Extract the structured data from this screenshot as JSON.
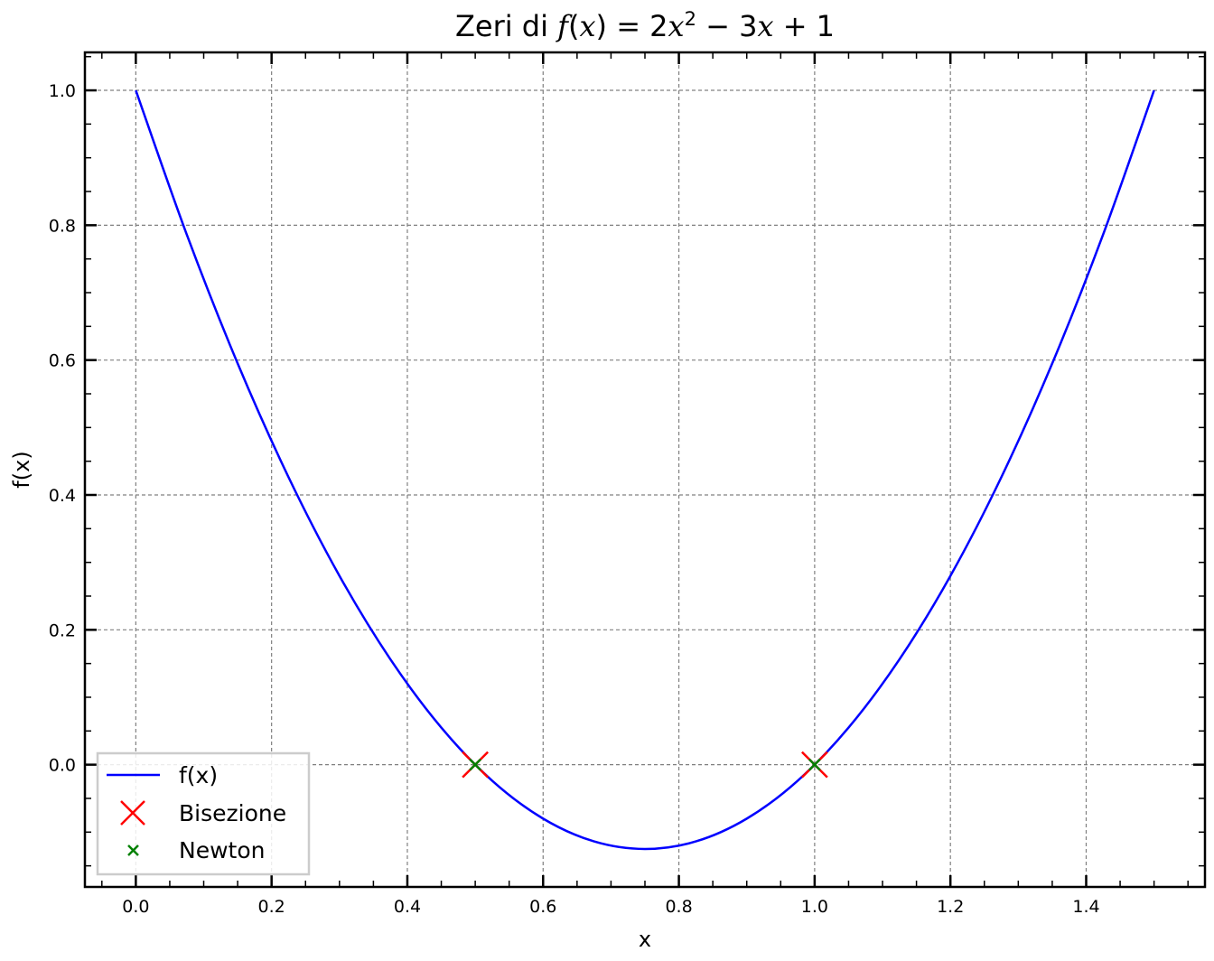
{
  "chart_data": {
    "type": "line",
    "title_parts": {
      "prefix": "Zeri di ",
      "fx": "f",
      "open": "(",
      "xvar": "x",
      "close": ")",
      "eq": " = 2",
      "x2": "x",
      "exp": "2",
      "mid": " − 3",
      "x3": "x",
      "tail": " + 1"
    },
    "xlabel": "x",
    "ylabel": "f(x)",
    "xlim": [
      -0.075,
      1.575
    ],
    "ylim": [
      -0.1813,
      1.0563
    ],
    "x_ticks": [
      0.0,
      0.2,
      0.4,
      0.6,
      0.8,
      1.0,
      1.2,
      1.4
    ],
    "x_tick_labels": [
      "0.0",
      "0.2",
      "0.4",
      "0.6",
      "0.8",
      "1.0",
      "1.2",
      "1.4"
    ],
    "y_ticks": [
      0.0,
      0.2,
      0.4,
      0.6,
      0.8,
      1.0
    ],
    "y_tick_labels": [
      "0.0",
      "0.2",
      "0.4",
      "0.6",
      "0.8",
      "1.0"
    ],
    "grid": true,
    "legend_position": "lower-left",
    "series": [
      {
        "name": "f(x)",
        "kind": "line",
        "color": "#0000ff",
        "x": [
          0.0,
          0.075,
          0.15,
          0.225,
          0.3,
          0.375,
          0.45,
          0.525,
          0.6,
          0.675,
          0.75,
          0.825,
          0.9,
          0.975,
          1.05,
          1.125,
          1.2,
          1.275,
          1.35,
          1.425,
          1.5
        ],
        "y": [
          1.0,
          0.7863,
          0.595,
          0.4263,
          0.28,
          0.1563,
          0.055,
          -0.0238,
          -0.08,
          -0.1138,
          -0.125,
          -0.1138,
          -0.08,
          -0.0238,
          0.055,
          0.1563,
          0.28,
          0.4263,
          0.595,
          0.7863,
          1.0
        ]
      },
      {
        "name": "Bisezione",
        "kind": "scatter",
        "marker": "x-large",
        "color": "#ff0000",
        "x": [
          0.5,
          1.0
        ],
        "y": [
          0.0,
          0.0
        ]
      },
      {
        "name": "Newton",
        "kind": "scatter",
        "marker": "x-small",
        "color": "#008000",
        "x": [
          0.5,
          1.0
        ],
        "y": [
          0.0,
          0.0
        ]
      }
    ]
  }
}
